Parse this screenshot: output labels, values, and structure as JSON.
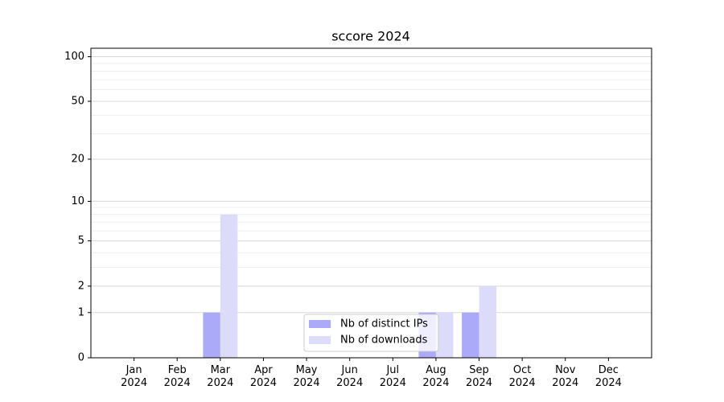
{
  "chart_data": {
    "type": "bar",
    "title": "sccore 2024",
    "categories": [
      "Jan\n2024",
      "Feb\n2024",
      "Mar\n2024",
      "Apr\n2024",
      "May\n2024",
      "Jun\n2024",
      "Jul\n2024",
      "Aug\n2024",
      "Sep\n2024",
      "Oct\n2024",
      "Nov\n2024",
      "Dec\n2024"
    ],
    "series": [
      {
        "name": "Nb of distinct IPs",
        "color": "#aaaaf8",
        "values": [
          0,
          0,
          1,
          0,
          0,
          0,
          0,
          1,
          1,
          0,
          0,
          0
        ]
      },
      {
        "name": "Nb of downloads",
        "color": "#dcdcfa",
        "values": [
          0,
          0,
          8,
          0,
          0,
          0,
          0,
          1,
          2,
          0,
          0,
          0
        ]
      }
    ],
    "yscale": "log1p",
    "ylim": [
      0,
      114
    ],
    "yticks": [
      0,
      1,
      2,
      5,
      10,
      20,
      50,
      100
    ],
    "minor_yticks": [
      3,
      4,
      6,
      7,
      8,
      9,
      30,
      40,
      60,
      70,
      80,
      90
    ],
    "grid": true,
    "legend": "lower center"
  }
}
